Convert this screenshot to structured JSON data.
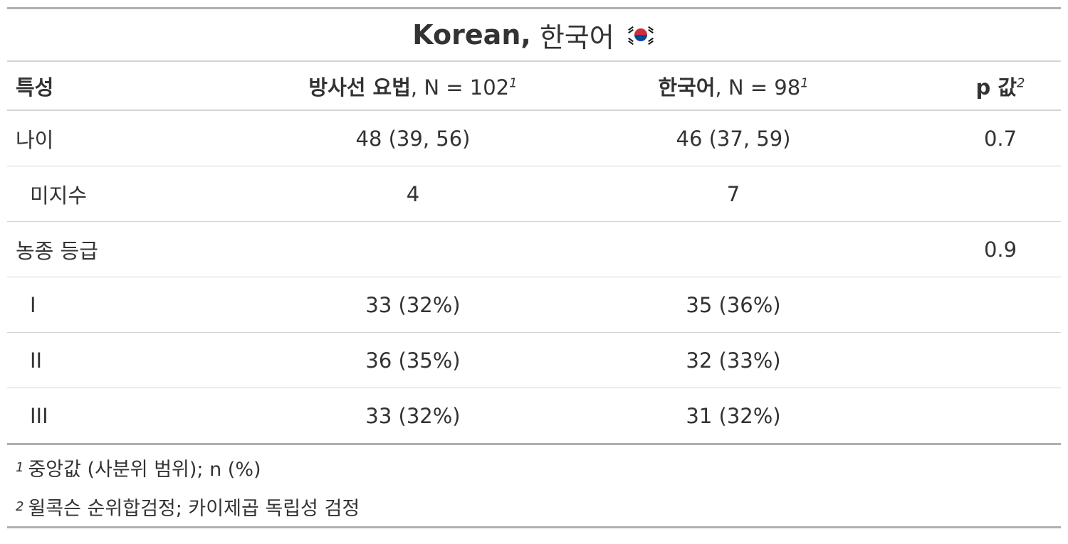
{
  "title": {
    "main": "Korean,",
    "sub": "한국어"
  },
  "flag_icon": "south-korea-flag-icon",
  "header": {
    "characteristic": "특성",
    "group1_name": "방사선 요법",
    "group1_n": ", N = 102",
    "group1_fn": "1",
    "group2_name": "한국어",
    "group2_n": ", N = 98",
    "group2_fn": "1",
    "pvalue": "p 값",
    "pvalue_fn": "2"
  },
  "rows": [
    {
      "label": "나이",
      "g1": "48 (39, 56)",
      "g2": "46 (37, 59)",
      "p": "0.7"
    },
    {
      "label": "미지수",
      "g1": "4",
      "g2": "7",
      "p": ""
    },
    {
      "label": "농종 등급",
      "g1": "",
      "g2": "",
      "p": "0.9"
    },
    {
      "label": "I",
      "g1": "33 (32%)",
      "g2": "35 (36%)",
      "p": ""
    },
    {
      "label": "II",
      "g1": "36 (35%)",
      "g2": "32 (33%)",
      "p": ""
    },
    {
      "label": "III",
      "g1": "33 (32%)",
      "g2": "31 (32%)",
      "p": ""
    }
  ],
  "footnotes": [
    {
      "mark": "1",
      "text": "중앙값 (사분위 범위); n (%)"
    },
    {
      "mark": "2",
      "text": "윌콕슨 순위합검정; 카이제곱 독립성 검정"
    }
  ],
  "colors": {
    "rule_heavy": "#b0b0b0",
    "rule_light": "#d3d3d3",
    "text": "#333333"
  }
}
